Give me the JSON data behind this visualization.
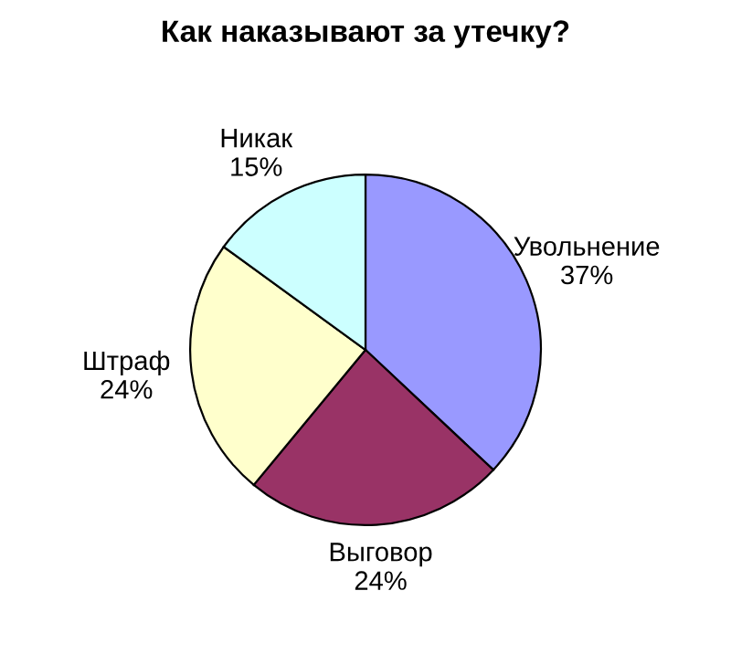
{
  "chart_data": {
    "type": "pie",
    "title": "Как наказывают за утечку?",
    "categories": [
      "Увольнение",
      "Выговор",
      "Штраф",
      "Никак"
    ],
    "values": [
      37,
      24,
      24,
      15
    ],
    "value_labels": [
      "37%",
      "24%",
      "24%",
      "15%"
    ],
    "colors": [
      "#9999ff",
      "#993366",
      "#ffffcc",
      "#ccffff"
    ],
    "legend": false
  }
}
